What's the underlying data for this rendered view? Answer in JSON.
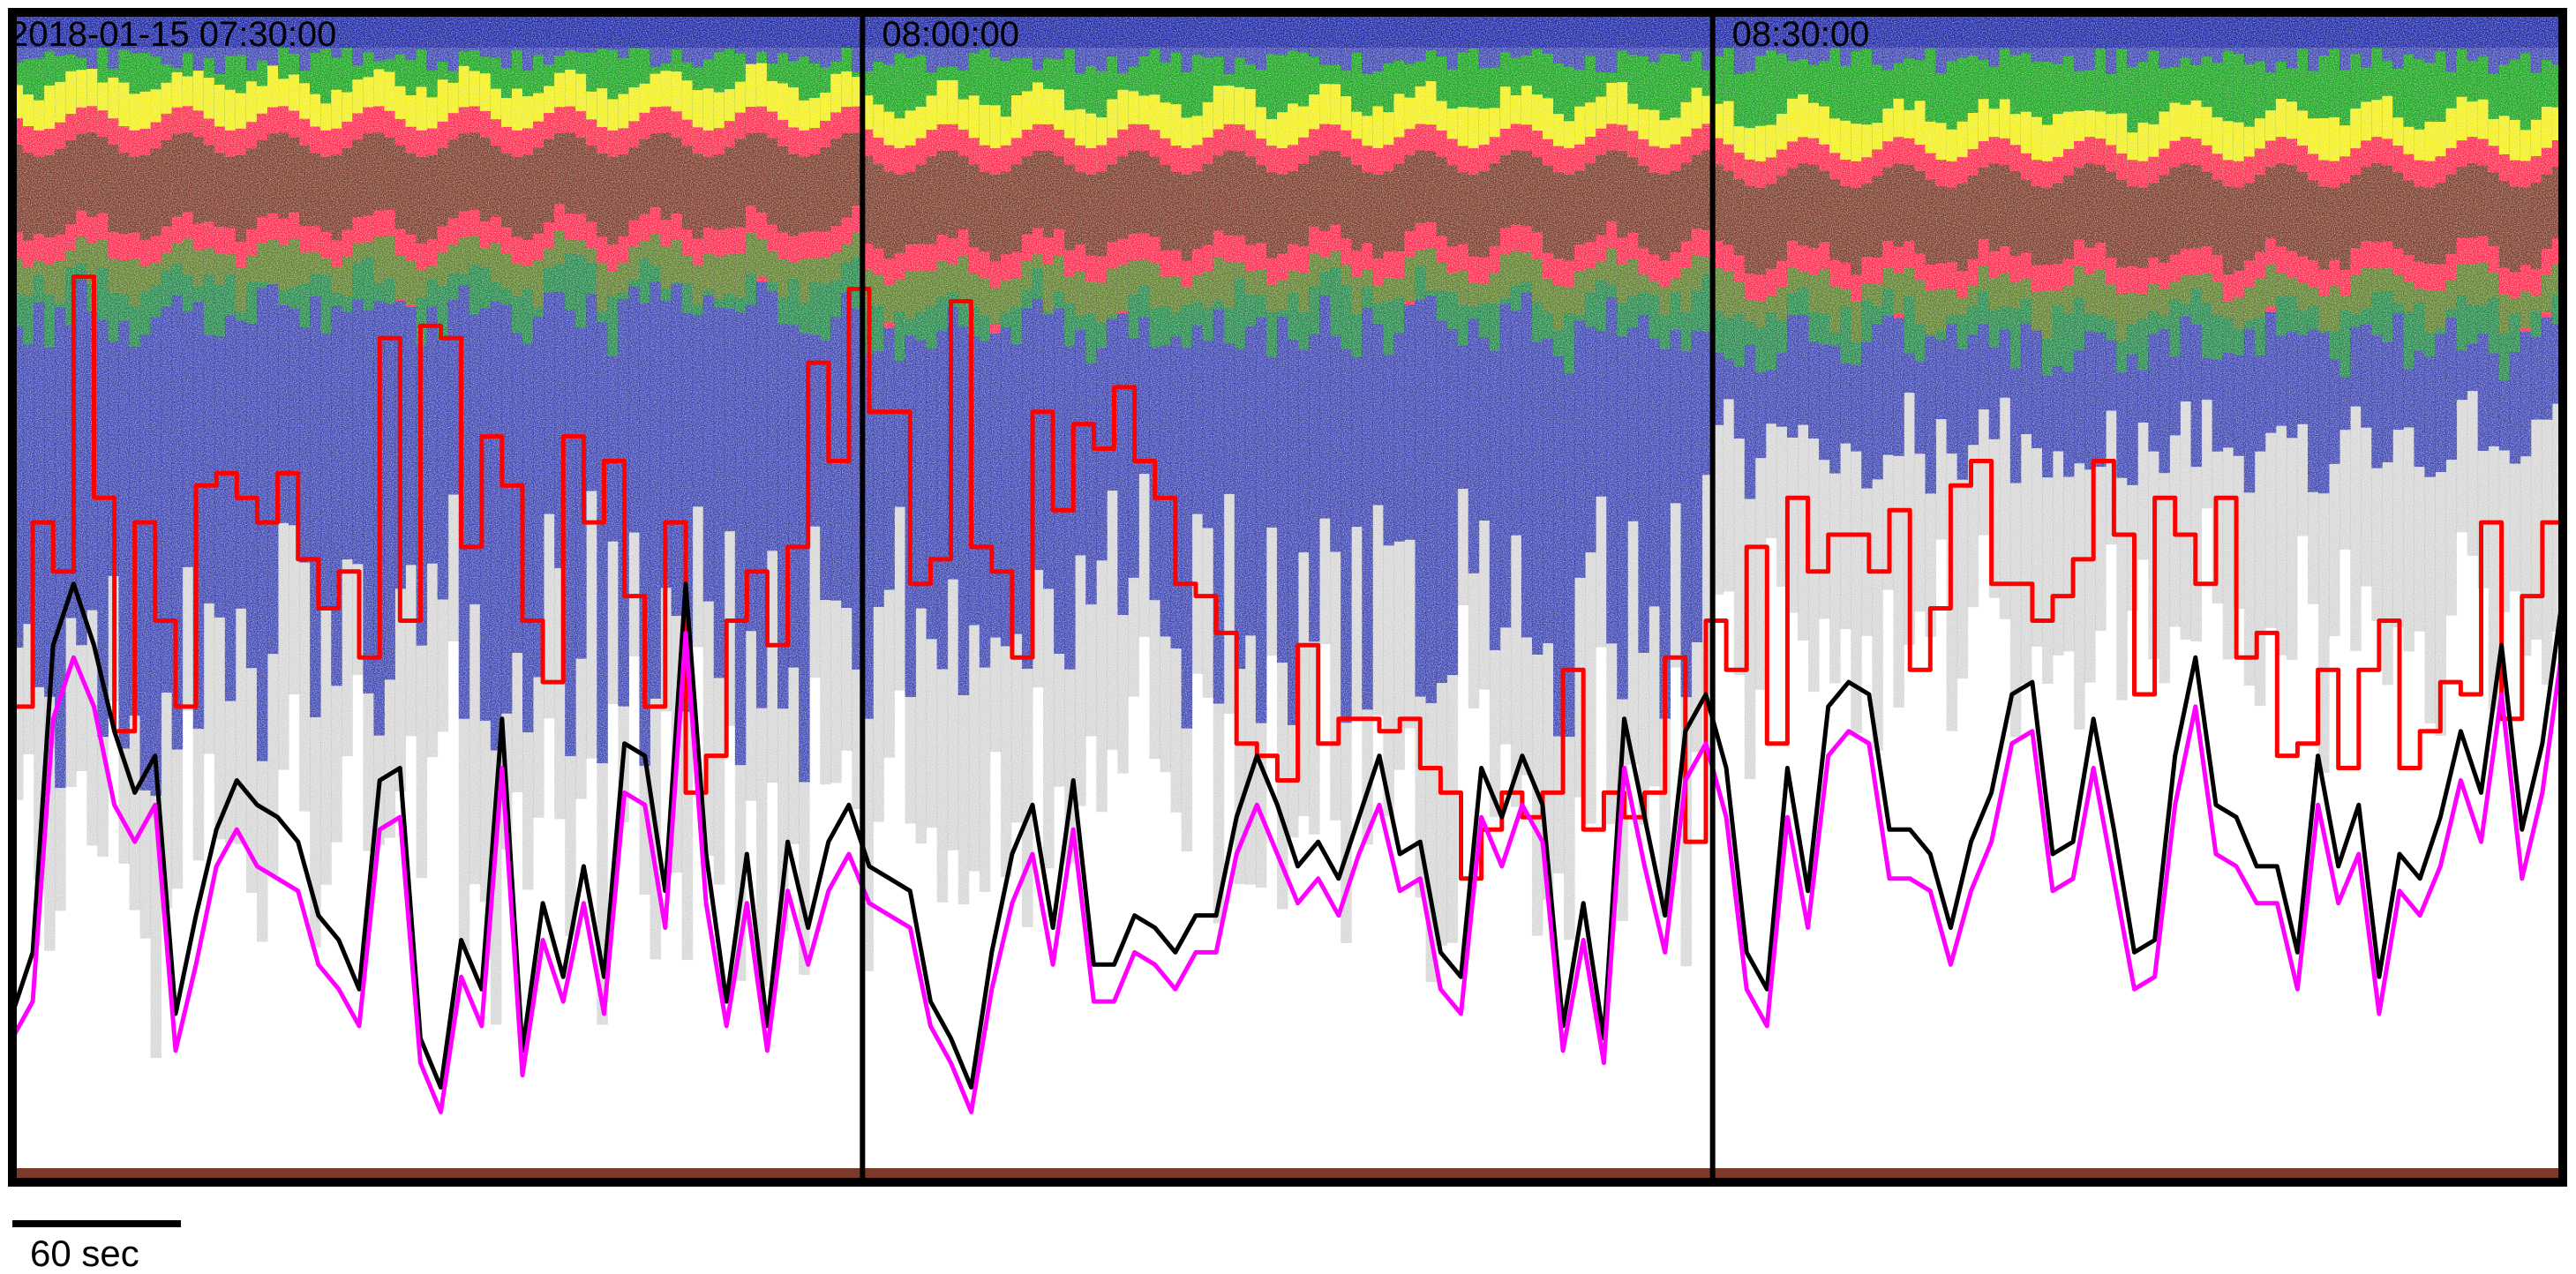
{
  "chart_data": {
    "type": "echogram",
    "title": "",
    "xlabel": "",
    "ylabel": "",
    "panels": [
      {
        "time_label": "2018-01-15 07:30:00"
      },
      {
        "time_label": "08:00:00"
      },
      {
        "time_label": "08:30:00"
      }
    ],
    "scale_bar": {
      "label": "60 sec",
      "duration_s": 60
    },
    "colors": {
      "strong_band": "#7a3b2a",
      "red_level": "#ff2a4d",
      "yellow_level": "#f3ef1a",
      "green_level": "#19a51e",
      "blue_level": "#1d27a5",
      "grey_level": "#8a8a8a",
      "line_red": "#ff0000",
      "line_black": "#000000",
      "line_magenta": "#ff00ff",
      "line_navy": "#1a1f8a",
      "frame": "#000000",
      "background": "#ffffff"
    },
    "series": [
      {
        "color": "#ff0000",
        "values": [
          0.38,
          0.53,
          0.49,
          0.73,
          0.55,
          0.36,
          0.53,
          0.45,
          0.38,
          0.56,
          0.57,
          0.55,
          0.53,
          0.57,
          0.5,
          0.46,
          0.49,
          0.42,
          0.68,
          0.45,
          0.69,
          0.68,
          0.51,
          0.6,
          0.56,
          0.45,
          0.4,
          0.6,
          0.53,
          0.58,
          0.47,
          0.38,
          0.53,
          0.31,
          0.34,
          0.45,
          0.49,
          0.43,
          0.51,
          0.66,
          0.58,
          0.72,
          0.62,
          0.62,
          0.48,
          0.5,
          0.71,
          0.51,
          0.49,
          0.42,
          0.62,
          0.54,
          0.61,
          0.59,
          0.64,
          0.58,
          0.55,
          0.48,
          0.47,
          0.44,
          0.35,
          0.34,
          0.32,
          0.43,
          0.35,
          0.37,
          0.37,
          0.36,
          0.37,
          0.33,
          0.31,
          0.24,
          0.28,
          0.31,
          0.29,
          0.31,
          0.41,
          0.28,
          0.31,
          0.29,
          0.31,
          0.42,
          0.27,
          0.45,
          0.41,
          0.51,
          0.35,
          0.55,
          0.49,
          0.52,
          0.52,
          0.49,
          0.54,
          0.41,
          0.46,
          0.56,
          0.58,
          0.48,
          0.48,
          0.45,
          0.47,
          0.5,
          0.58,
          0.52,
          0.39,
          0.55,
          0.52,
          0.48,
          0.55,
          0.42,
          0.44,
          0.34,
          0.35,
          0.41,
          0.33,
          0.41,
          0.45,
          0.33,
          0.36,
          0.4,
          0.39,
          0.53,
          0.37,
          0.47,
          0.53,
          0.49
        ]
      },
      {
        "color": "#000000",
        "values": [
          0.13,
          0.18,
          0.43,
          0.48,
          0.43,
          0.36,
          0.31,
          0.34,
          0.13,
          0.21,
          0.28,
          0.32,
          0.3,
          0.29,
          0.27,
          0.21,
          0.19,
          0.15,
          0.32,
          0.33,
          0.11,
          0.07,
          0.19,
          0.15,
          0.37,
          0.1,
          0.22,
          0.16,
          0.25,
          0.16,
          0.35,
          0.34,
          0.23,
          0.48,
          0.26,
          0.14,
          0.26,
          0.12,
          0.27,
          0.2,
          0.27,
          0.3,
          0.25,
          0.24,
          0.23,
          0.14,
          0.11,
          0.07,
          0.18,
          0.26,
          0.3,
          0.2,
          0.32,
          0.17,
          0.17,
          0.21,
          0.2,
          0.18,
          0.21,
          0.21,
          0.29,
          0.34,
          0.3,
          0.25,
          0.27,
          0.24,
          0.29,
          0.34,
          0.26,
          0.27,
          0.18,
          0.16,
          0.33,
          0.29,
          0.34,
          0.3,
          0.12,
          0.22,
          0.11,
          0.37,
          0.29,
          0.21,
          0.36,
          0.39,
          0.33,
          0.18,
          0.15,
          0.33,
          0.23,
          0.38,
          0.4,
          0.39,
          0.28,
          0.28,
          0.26,
          0.2,
          0.27,
          0.31,
          0.39,
          0.4,
          0.26,
          0.27,
          0.37,
          0.28,
          0.18,
          0.19,
          0.34,
          0.42,
          0.3,
          0.29,
          0.25,
          0.25,
          0.18,
          0.34,
          0.25,
          0.3,
          0.16,
          0.26,
          0.24,
          0.29,
          0.36,
          0.31,
          0.43,
          0.28,
          0.35,
          0.47
        ]
      },
      {
        "color": "#ff00ff",
        "values": [
          0.11,
          0.14,
          0.37,
          0.42,
          0.38,
          0.3,
          0.27,
          0.3,
          0.1,
          0.17,
          0.25,
          0.28,
          0.25,
          0.24,
          0.23,
          0.17,
          0.15,
          0.12,
          0.28,
          0.29,
          0.09,
          0.05,
          0.16,
          0.12,
          0.33,
          0.08,
          0.19,
          0.14,
          0.22,
          0.13,
          0.31,
          0.3,
          0.2,
          0.44,
          0.22,
          0.12,
          0.22,
          0.1,
          0.23,
          0.17,
          0.23,
          0.26,
          0.22,
          0.21,
          0.2,
          0.12,
          0.09,
          0.05,
          0.15,
          0.22,
          0.26,
          0.17,
          0.28,
          0.14,
          0.14,
          0.18,
          0.17,
          0.15,
          0.18,
          0.18,
          0.26,
          0.3,
          0.26,
          0.22,
          0.24,
          0.21,
          0.26,
          0.3,
          0.23,
          0.24,
          0.15,
          0.13,
          0.29,
          0.25,
          0.3,
          0.27,
          0.1,
          0.19,
          0.09,
          0.33,
          0.25,
          0.18,
          0.32,
          0.35,
          0.29,
          0.15,
          0.12,
          0.29,
          0.2,
          0.34,
          0.36,
          0.35,
          0.24,
          0.24,
          0.23,
          0.17,
          0.23,
          0.27,
          0.35,
          0.36,
          0.23,
          0.24,
          0.33,
          0.24,
          0.15,
          0.16,
          0.3,
          0.38,
          0.26,
          0.25,
          0.22,
          0.22,
          0.15,
          0.3,
          0.22,
          0.26,
          0.13,
          0.23,
          0.21,
          0.25,
          0.32,
          0.27,
          0.39,
          0.24,
          0.31,
          0.43
        ]
      }
    ]
  }
}
